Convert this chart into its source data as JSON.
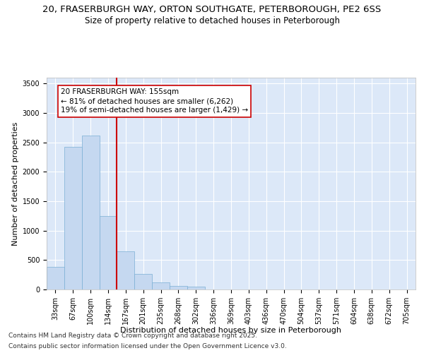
{
  "title_line1": "20, FRASERBURGH WAY, ORTON SOUTHGATE, PETERBOROUGH, PE2 6SS",
  "title_line2": "Size of property relative to detached houses in Peterborough",
  "xlabel": "Distribution of detached houses by size in Peterborough",
  "ylabel": "Number of detached properties",
  "categories": [
    "33sqm",
    "67sqm",
    "100sqm",
    "134sqm",
    "167sqm",
    "201sqm",
    "235sqm",
    "268sqm",
    "302sqm",
    "336sqm",
    "369sqm",
    "403sqm",
    "436sqm",
    "470sqm",
    "504sqm",
    "537sqm",
    "571sqm",
    "604sqm",
    "638sqm",
    "672sqm",
    "705sqm"
  ],
  "values": [
    390,
    2420,
    2620,
    1250,
    650,
    260,
    115,
    65,
    45,
    0,
    0,
    0,
    0,
    0,
    0,
    0,
    0,
    0,
    0,
    0,
    0
  ],
  "bar_color": "#c5d8f0",
  "bar_edge_color": "#7aafd4",
  "vline_color": "#cc0000",
  "annotation_text": "20 FRASERBURGH WAY: 155sqm\n← 81% of detached houses are smaller (6,262)\n19% of semi-detached houses are larger (1,429) →",
  "annotation_box_color": "white",
  "annotation_box_edge_color": "#cc0000",
  "ylim": [
    0,
    3600
  ],
  "yticks": [
    0,
    500,
    1000,
    1500,
    2000,
    2500,
    3000,
    3500
  ],
  "background_color": "#dce8f8",
  "grid_color": "white",
  "footer_line1": "Contains HM Land Registry data © Crown copyright and database right 2025.",
  "footer_line2": "Contains public sector information licensed under the Open Government Licence v3.0.",
  "title_fontsize": 9.5,
  "subtitle_fontsize": 8.5,
  "axis_label_fontsize": 8,
  "tick_fontsize": 7,
  "annotation_fontsize": 7.5,
  "footer_fontsize": 6.5
}
